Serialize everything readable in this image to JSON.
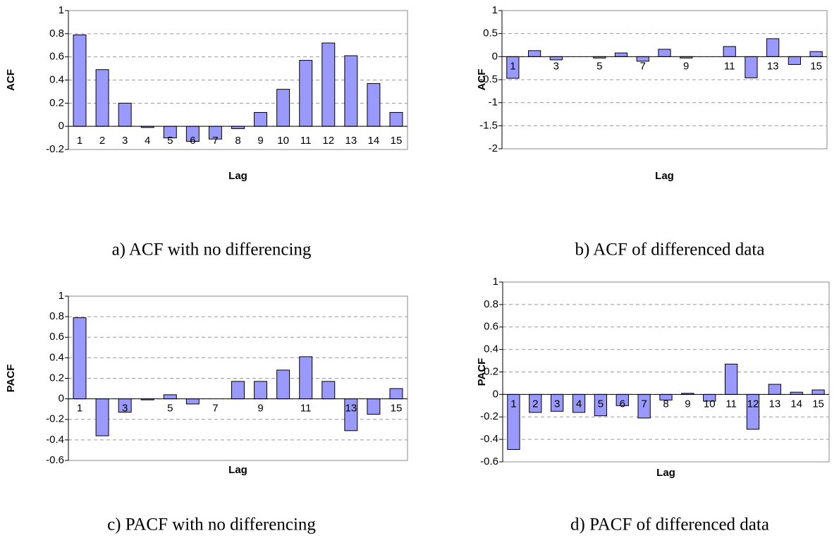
{
  "chart_data": [
    {
      "type": "bar",
      "ylabel": "ACF",
      "xlabel": "Lag",
      "caption": "a) ACF with no differencing",
      "categories": [
        "1",
        "2",
        "3",
        "4",
        "5",
        "6",
        "7",
        "8",
        "9",
        "10",
        "11",
        "12",
        "13",
        "14",
        "15"
      ],
      "values": [
        0.79,
        0.49,
        0.2,
        -0.01,
        -0.1,
        -0.13,
        -0.11,
        -0.02,
        0.12,
        0.32,
        0.57,
        0.72,
        0.61,
        0.37,
        0.12
      ],
      "color": "#9999ff",
      "ylim": [
        -0.2,
        1
      ],
      "yticks": [
        -0.2,
        0,
        0.2,
        0.4,
        0.6,
        0.8,
        1
      ],
      "grid": true,
      "tick_label_position": "low"
    },
    {
      "type": "bar",
      "ylabel": "ACF",
      "xlabel": "Lag",
      "caption": "b) ACF of differenced data",
      "categories": [
        "1",
        null,
        "3",
        null,
        "5",
        null,
        "7",
        null,
        "9",
        null,
        "11",
        null,
        "13",
        null,
        "15"
      ],
      "values": [
        -0.47,
        0.13,
        -0.07,
        0,
        -0.03,
        0.08,
        -0.1,
        0.16,
        -0.03,
        0,
        0.22,
        -0.46,
        0.39,
        -0.17,
        0.11
      ],
      "color": "#9999ff",
      "ylim": [
        -2,
        1
      ],
      "yticks": [
        -2,
        -1.5,
        -1,
        -0.5,
        0,
        0.5,
        1
      ],
      "grid": true,
      "tick_label_position": "axis"
    },
    {
      "type": "bar",
      "ylabel": "PACF",
      "xlabel": "Lag",
      "caption": "c) PACF with no differencing",
      "categories": [
        "1",
        null,
        "3",
        null,
        "5",
        null,
        "7",
        null,
        "9",
        null,
        "11",
        null,
        "13",
        null,
        "15"
      ],
      "values": [
        0.79,
        -0.36,
        -0.13,
        -0.01,
        0.04,
        -0.05,
        0,
        0.17,
        0.17,
        0.28,
        0.41,
        0.17,
        -0.31,
        -0.15,
        0.1
      ],
      "color": "#9999ff",
      "ylim": [
        -0.6,
        1
      ],
      "yticks": [
        -0.6,
        -0.4,
        -0.2,
        0,
        0.2,
        0.4,
        0.6,
        0.8,
        1
      ],
      "grid": true,
      "tick_label_position": "axis"
    },
    {
      "type": "bar",
      "ylabel": "PACF",
      "xlabel": "Lag",
      "caption": "d) PACF of differenced data",
      "categories": [
        "1",
        "2",
        "3",
        "4",
        "5",
        "6",
        "7",
        "8",
        "9",
        "10",
        "11",
        "12",
        "13",
        "14",
        "15"
      ],
      "values": [
        -0.49,
        -0.16,
        -0.15,
        -0.16,
        -0.19,
        -0.1,
        -0.21,
        -0.05,
        0.01,
        -0.06,
        0.27,
        -0.31,
        0.09,
        0.02,
        0.04
      ],
      "color": "#9999ff",
      "ylim": [
        -0.6,
        1
      ],
      "yticks": [
        -0.6,
        -0.4,
        -0.2,
        0,
        0.2,
        0.4,
        0.6,
        0.8,
        1
      ],
      "grid": true,
      "tick_label_position": "axis"
    }
  ]
}
